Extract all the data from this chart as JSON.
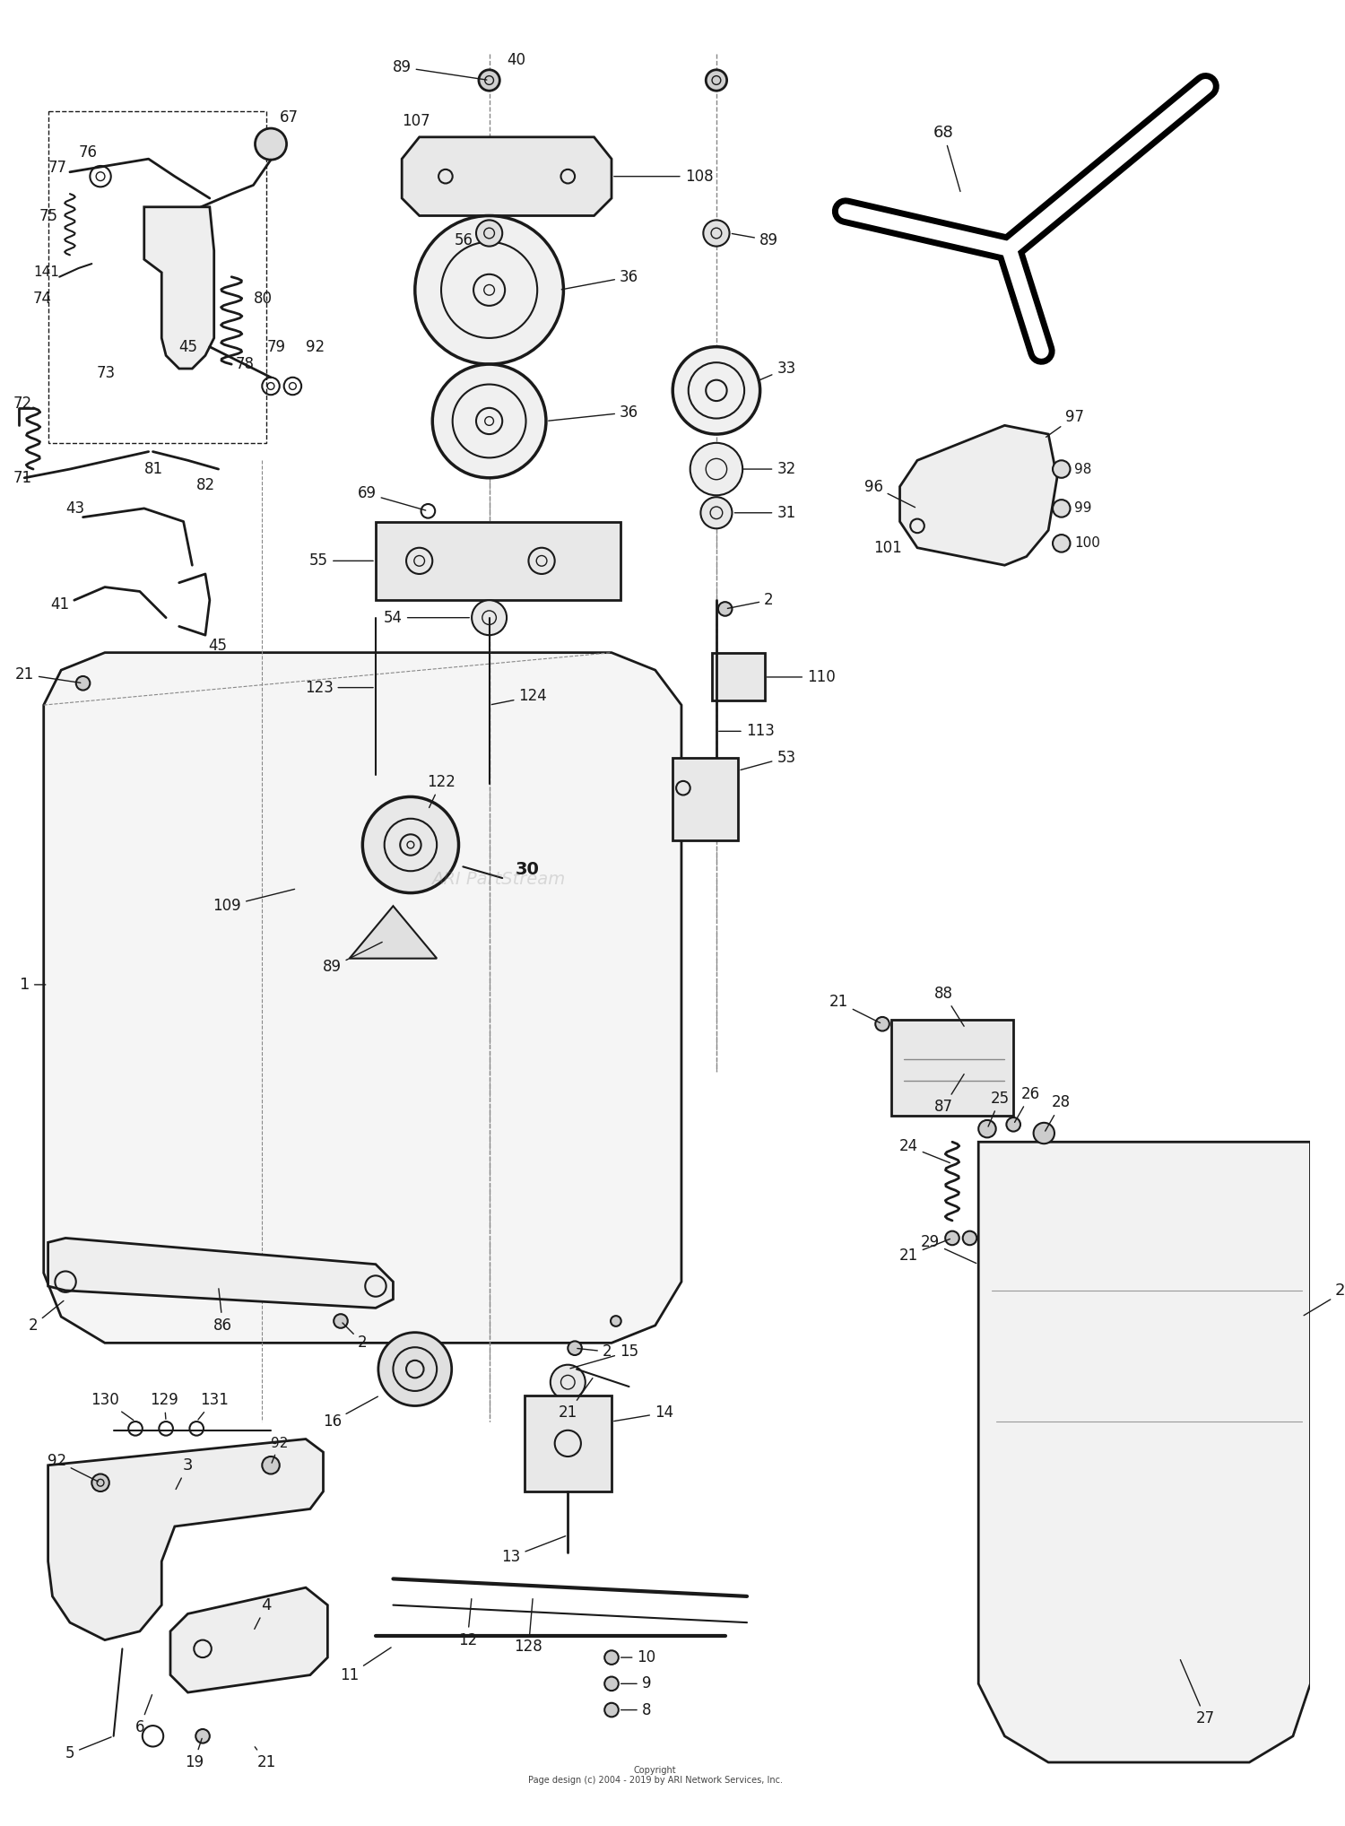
{
  "background_color": "#ffffff",
  "line_color": "#1a1a1a",
  "fig_width": 15.0,
  "fig_height": 20.36,
  "dpi": 100,
  "copyright": "Copyright\nPage design (c) 2004 - 2019 by ARI Network Services, Inc."
}
